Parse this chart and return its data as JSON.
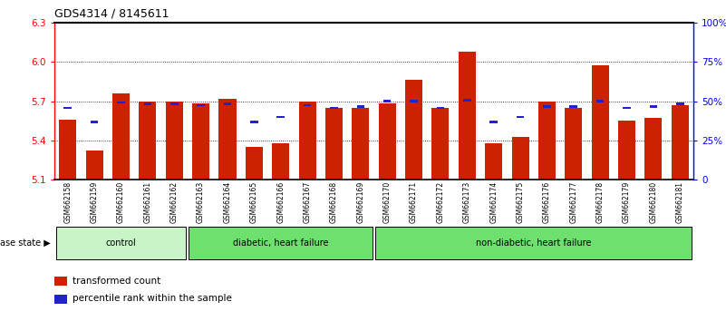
{
  "title": "GDS4314 / 8145611",
  "samples": [
    "GSM662158",
    "GSM662159",
    "GSM662160",
    "GSM662161",
    "GSM662162",
    "GSM662163",
    "GSM662164",
    "GSM662165",
    "GSM662166",
    "GSM662167",
    "GSM662168",
    "GSM662169",
    "GSM662170",
    "GSM662171",
    "GSM662172",
    "GSM662173",
    "GSM662174",
    "GSM662175",
    "GSM662176",
    "GSM662177",
    "GSM662178",
    "GSM662179",
    "GSM662180",
    "GSM662181"
  ],
  "red_values": [
    5.56,
    5.32,
    5.76,
    5.7,
    5.7,
    5.68,
    5.72,
    5.35,
    5.38,
    5.7,
    5.65,
    5.65,
    5.68,
    5.86,
    5.65,
    6.08,
    5.38,
    5.43,
    5.7,
    5.65,
    5.97,
    5.55,
    5.57,
    5.67
  ],
  "blue_values": [
    5.64,
    5.53,
    5.68,
    5.67,
    5.67,
    5.66,
    5.67,
    5.53,
    5.57,
    5.66,
    5.64,
    5.65,
    5.69,
    5.69,
    5.64,
    5.7,
    5.53,
    5.57,
    5.65,
    5.65,
    5.69,
    5.64,
    5.65,
    5.67
  ],
  "ylim_left": [
    5.1,
    6.3
  ],
  "yticks_left": [
    5.1,
    5.4,
    5.7,
    6.0,
    6.3
  ],
  "yticks_right": [
    0,
    25,
    50,
    75,
    100
  ],
  "group_boundaries": [
    0,
    5,
    12,
    24
  ],
  "group_labels": [
    "control",
    "diabetic, heart failure",
    "non-diabetic, heart failure"
  ],
  "group_colors": [
    "#c8f4c8",
    "#6ee06e",
    "#6ee06e"
  ],
  "bar_color": "#cc2200",
  "dot_color": "#2222cc",
  "background_color": "#ffffff",
  "tick_area_color": "#c8c8c8",
  "legend_red_label": "transformed count",
  "legend_blue_label": "percentile rank within the sample"
}
